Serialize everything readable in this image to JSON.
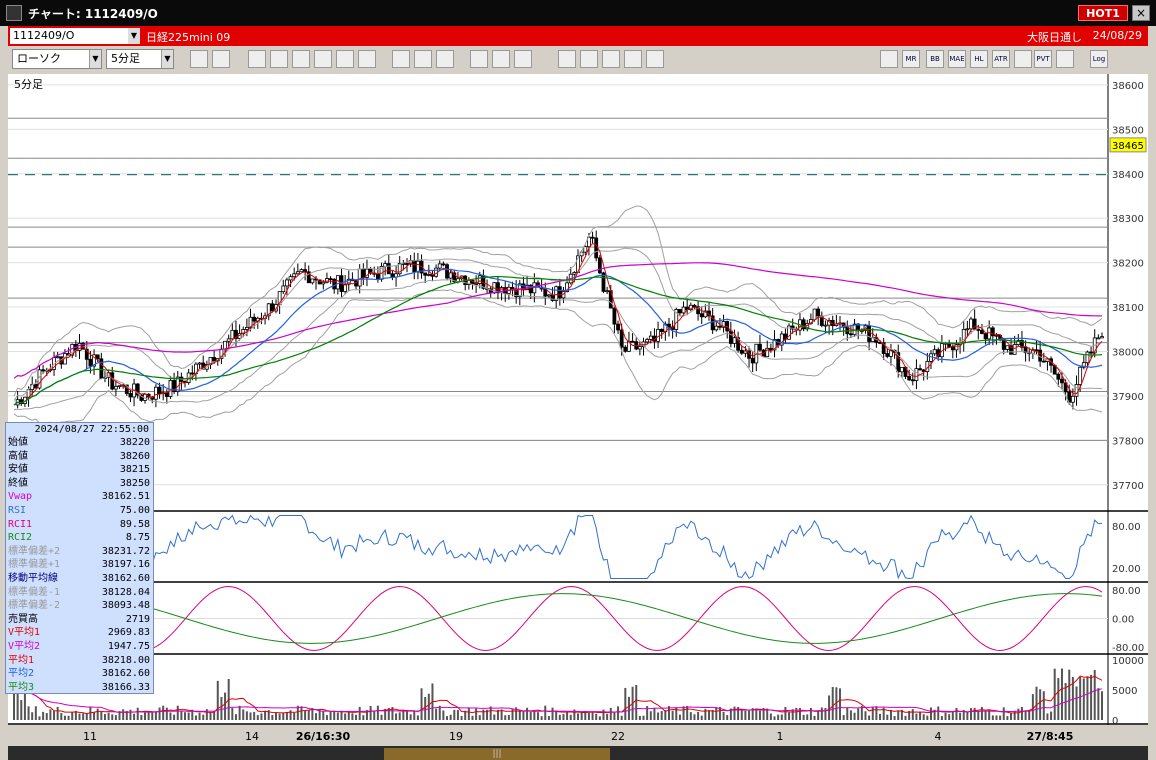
{
  "window": {
    "title": "チャート: 1112409/O",
    "hot_label": "HOT1",
    "close_label": "×"
  },
  "info": {
    "symbol": "1112409/O",
    "name": "日経225mini 09",
    "exchange": "大阪日通し",
    "date": "24/08/29"
  },
  "toolbar": {
    "chart_type": "ローソク",
    "interval": "5分足",
    "buttons_right": [
      "MR",
      "BB",
      "MAE",
      "HL",
      "ATR",
      "PVT",
      "Log"
    ]
  },
  "chart": {
    "interval_label": "5分足",
    "current_price": "38465",
    "price_axis": [
      "38600",
      "38500",
      "38400",
      "38300",
      "38200",
      "38100",
      "38000",
      "37900",
      "37800",
      "37700"
    ],
    "rsi_axis": [
      "80.00",
      "20.00"
    ],
    "rci_axis": [
      "80.00",
      "0.00",
      "-80.00"
    ],
    "vol_axis": [
      "10000",
      "5000",
      "0"
    ],
    "x_labels": [
      {
        "text": "11",
        "bold": false
      },
      {
        "text": "14",
        "bold": false
      },
      {
        "text": "26/16:30",
        "bold": true
      },
      {
        "text": "19",
        "bold": false
      },
      {
        "text": "22",
        "bold": false
      },
      {
        "text": "1",
        "bold": false
      },
      {
        "text": "4",
        "bold": false
      },
      {
        "text": "27/8:45",
        "bold": true
      }
    ],
    "colors": {
      "vwap": "#cc00cc",
      "ma1": "#e00000",
      "ma2": "#2060e0",
      "ma3": "#008000",
      "bands": "#a0a0a0",
      "rsi": "#3070d0",
      "rci1": "#e0007a",
      "rci2": "#1a8a1a",
      "volume": "#555555"
    }
  },
  "chart_data": {
    "type": "candlestick",
    "interval": "5分足",
    "ylim": [
      37650,
      38620
    ],
    "y_ticks": [
      38600,
      38500,
      38400,
      38300,
      38200,
      38100,
      38000,
      37900,
      37800,
      37700
    ],
    "current_price": 38465,
    "x_tick_labels": [
      "11",
      "14",
      "26/16:30",
      "19",
      "22",
      "1",
      "4",
      "27/8:45"
    ],
    "approx_close_path": [
      37880,
      37960,
      38020,
      37930,
      37900,
      37920,
      37980,
      38040,
      38100,
      38180,
      38150,
      38170,
      38190,
      38190,
      38170,
      38150,
      38140,
      38130,
      38260,
      38000,
      38020,
      38100,
      38060,
      37990,
      38030,
      38080,
      38060,
      38030,
      37940,
      38000,
      38060,
      38010,
      38000,
      37900,
      38050
    ],
    "series": [
      {
        "name": "Vwap",
        "last": 38162.51
      },
      {
        "name": "平均1",
        "last": 38218.0
      },
      {
        "name": "平均2",
        "last": 38162.6
      },
      {
        "name": "平均3",
        "last": 38166.33
      }
    ],
    "indicators": {
      "rsi_last": 75.0,
      "rci1_last": 89.58,
      "rci2_last": 8.75,
      "volume_peak": 10000
    }
  },
  "panel": {
    "datetime": "2024/08/27  22:55:00",
    "rows": [
      {
        "k": "始値",
        "v": "38220",
        "c": "#000"
      },
      {
        "k": "高値",
        "v": "38260",
        "c": "#000"
      },
      {
        "k": "安値",
        "v": "38215",
        "c": "#000"
      },
      {
        "k": "終値",
        "v": "38250",
        "c": "#000"
      },
      {
        "k": "Vwap",
        "v": "38162.51",
        "c": "#cc00cc"
      },
      {
        "k": "RSI",
        "v": "75.00",
        "c": "#3070d0"
      },
      {
        "k": "RCI1",
        "v": "89.58",
        "c": "#e0007a"
      },
      {
        "k": "RCI2",
        "v": "8.75",
        "c": "#1a8a1a"
      },
      {
        "k": "標準偏差+2",
        "v": "38231.72",
        "c": "#999"
      },
      {
        "k": "標準偏差+1",
        "v": "38197.16",
        "c": "#999"
      },
      {
        "k": "移動平均線",
        "v": "38162.60",
        "c": "#000080"
      },
      {
        "k": "標準偏差-1",
        "v": "38128.04",
        "c": "#999"
      },
      {
        "k": "標準偏差-2",
        "v": "38093.48",
        "c": "#999"
      },
      {
        "k": "売買高",
        "v": "2719",
        "c": "#000"
      },
      {
        "k": "V平均1",
        "v": "2969.83",
        "c": "#e00000"
      },
      {
        "k": "V平均2",
        "v": "1947.75",
        "c": "#cc00cc"
      },
      {
        "k": "平均1",
        "v": "38218.00",
        "c": "#e00000"
      },
      {
        "k": "平均2",
        "v": "38162.60",
        "c": "#2060e0"
      },
      {
        "k": "平均3",
        "v": "38166.33",
        "c": "#1a8a1a"
      }
    ]
  }
}
